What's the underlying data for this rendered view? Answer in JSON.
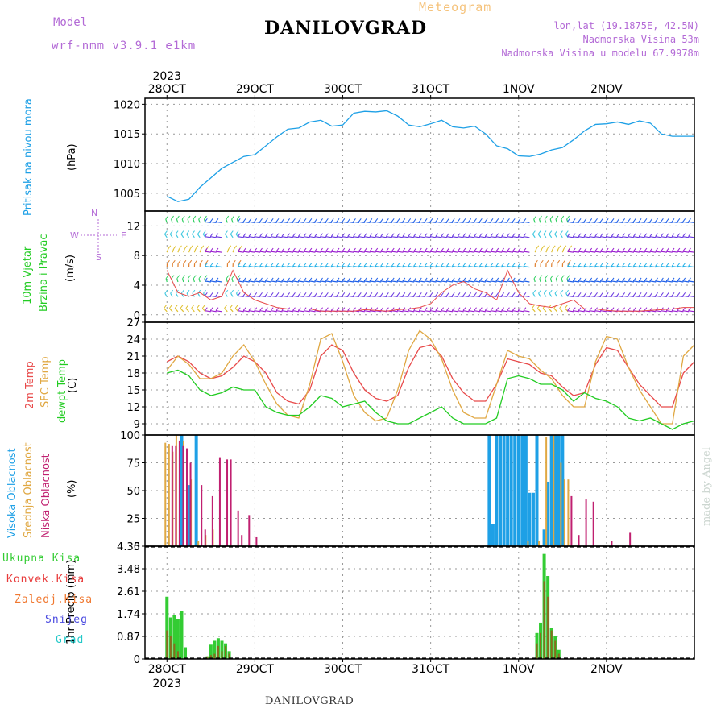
{
  "header": {
    "model_label": "Model",
    "model_name": "wrf-nmm_v3.9.1 e1km",
    "location": "DANILOVGRAD",
    "meteogram": "Meteogram",
    "lonlat": "lon,lat (19.1875E, 42.5N)",
    "elevation": "Nadmorska Visina 53m",
    "model_elevation": "Nadmorska Visina u modelu 67.9978m",
    "footer": "DANILOVGRAD",
    "made_by": "made by Angel"
  },
  "time_axis": {
    "year": "2023",
    "days": [
      "28OCT",
      "29OCT",
      "30OCT",
      "31OCT",
      "1NOV",
      "2NOV"
    ]
  },
  "panels": {
    "pressure": {
      "label": "Pritisak na nivou mora",
      "unit": "(hPa)"
    },
    "wind": {
      "label1": "10m Vjetar",
      "label2": "Brzina i Pravac",
      "unit": "(m/s)",
      "compass_n": "N",
      "compass_s": "S",
      "compass_e": "E",
      "compass_w": "W"
    },
    "temp": {
      "label1": "2m Temp",
      "label2": "SFC Temp",
      "label3": "dewpt Temp",
      "unit": "(C)"
    },
    "cloud": {
      "label1": "Visoka Oblacnost",
      "label2": "Srednja Oblacnost",
      "label3": "Niska Oblacnost",
      "unit": "(%)"
    },
    "precip": {
      "label": "1hr Precip (mm)",
      "legend": [
        "Ukupna Kisa",
        "Konvek.Kisa",
        "Zaledj.Kisa",
        "Snijeg",
        "Grad"
      ]
    }
  },
  "colors": {
    "pressure": "#1ea0e6",
    "t2m": "#e84a4a",
    "tsfc": "#e0a843",
    "dewpt": "#22cc22",
    "cloud_high": "#1ea0e6",
    "cloud_mid": "#e0a843",
    "cloud_low": "#c02070",
    "rain_total": "#33cc33",
    "rain_conv": "#e83a3a",
    "rain_frz": "#f07830",
    "snow": "#4a4ae0",
    "hail": "#22c8c8",
    "wind_label": "#22cc22",
    "label_purple": "#b36ad6"
  },
  "chart_data": [
    {
      "type": "line",
      "title": "Pritisak na nivou mora",
      "ylabel": "(hPa)",
      "ylim": [
        1002,
        1021
      ],
      "yticks": [
        1005,
        1010,
        1015,
        1020
      ],
      "x_hours": [
        0,
        3,
        6,
        9,
        12,
        15,
        18,
        21,
        24,
        27,
        30,
        33,
        36,
        39,
        42,
        45,
        48,
        51,
        54,
        57,
        60,
        63,
        66,
        69,
        72,
        75,
        78,
        81,
        84,
        87,
        90,
        93,
        96,
        99,
        102,
        105,
        108,
        111,
        114,
        117,
        120,
        123,
        126,
        129,
        132,
        135,
        138,
        141,
        144
      ],
      "series": [
        {
          "values": [
            1004.5,
            1003.6,
            1004.0,
            1006.0,
            1007.6,
            1009.2,
            1010.2,
            1011.2,
            1011.5,
            1013.0,
            1014.5,
            1015.8,
            1016.0,
            1017.0,
            1017.3,
            1016.3,
            1016.5,
            1018.5,
            1018.8,
            1018.7,
            1018.9,
            1018.0,
            1016.5,
            1016.2,
            1016.7,
            1017.3,
            1016.2,
            1016.0,
            1016.3,
            1015.0,
            1013.0,
            1012.5,
            1011.3,
            1011.2,
            1011.6,
            1012.3,
            1012.7,
            1014.0,
            1015.5,
            1016.6,
            1016.7,
            1017.0,
            1016.6,
            1017.2,
            1016.8,
            1015.0,
            1014.6,
            1014.6,
            1014.6
          ]
        }
      ]
    },
    {
      "type": "line",
      "title": "10m Vjetar Brzina i Pravac",
      "ylabel": "(m/s)",
      "ylim": [
        -1,
        14
      ],
      "yticks": [
        0,
        4,
        8,
        12
      ],
      "x_hours": [
        0,
        3,
        6,
        9,
        12,
        15,
        18,
        21,
        24,
        27,
        30,
        33,
        36,
        39,
        42,
        45,
        48,
        51,
        54,
        57,
        60,
        63,
        66,
        69,
        72,
        75,
        78,
        81,
        84,
        87,
        90,
        93,
        96,
        99,
        102,
        105,
        108,
        111,
        114,
        117,
        120,
        123,
        126,
        129,
        132,
        135,
        138,
        141,
        144
      ],
      "series": [
        {
          "values": [
            6,
            3,
            2.5,
            3,
            2,
            2.5,
            6,
            3,
            2,
            1.5,
            1,
            0.8,
            0.8,
            0.8,
            0.5,
            0.5,
            0.5,
            0.5,
            0.7,
            0.6,
            0.5,
            0.7,
            0.8,
            1,
            1.5,
            3,
            4,
            4.5,
            3.5,
            3,
            2,
            6,
            3,
            1.5,
            1.2,
            1,
            1.5,
            2,
            0.8,
            0.8,
            0.6,
            0.5,
            0.5,
            0.5,
            0.6,
            0.7,
            0.8,
            1,
            1
          ]
        }
      ]
    },
    {
      "type": "line",
      "title": "2m Temp / SFC Temp / dewpt Temp",
      "ylabel": "(C)",
      "ylim": [
        7,
        27
      ],
      "yticks": [
        9,
        12,
        15,
        18,
        21,
        24,
        27
      ],
      "x_hours": [
        0,
        3,
        6,
        9,
        12,
        15,
        18,
        21,
        24,
        27,
        30,
        33,
        36,
        39,
        42,
        45,
        48,
        51,
        54,
        57,
        60,
        63,
        66,
        69,
        72,
        75,
        78,
        81,
        84,
        87,
        90,
        93,
        96,
        99,
        102,
        105,
        108,
        111,
        114,
        117,
        120,
        123,
        126,
        129,
        132,
        135,
        138,
        141,
        144
      ],
      "series": [
        {
          "name": "2m Temp",
          "values": [
            20,
            21,
            20,
            18,
            17,
            17.5,
            19,
            21,
            20,
            18,
            14.5,
            13,
            12.5,
            15,
            21,
            23,
            22,
            18,
            15,
            13.5,
            13,
            14,
            19,
            22.5,
            23,
            21,
            17,
            14.5,
            13,
            13,
            16,
            20.5,
            20,
            19.5,
            18,
            17.5,
            15.5,
            14,
            14.5,
            19.5,
            22.5,
            22,
            19,
            16,
            14,
            12,
            12,
            18,
            20
          ]
        },
        {
          "name": "SFC Temp",
          "values": [
            18.5,
            21,
            19.5,
            17,
            17,
            18,
            21,
            23,
            20,
            16,
            12.5,
            10.5,
            10,
            16,
            24,
            25,
            20,
            14,
            11,
            9.5,
            10,
            15,
            22,
            25.5,
            24,
            20.5,
            15,
            11,
            10,
            10,
            16,
            22,
            21,
            20.5,
            18.5,
            17,
            14,
            12,
            12,
            20,
            24.5,
            24,
            19,
            15,
            12,
            9,
            9,
            21,
            23
          ]
        },
        {
          "name": "dewpt Temp",
          "values": [
            18,
            18.5,
            17.5,
            15,
            14,
            14.5,
            15.5,
            15,
            15,
            12,
            11,
            10.5,
            10.5,
            12,
            14,
            13.5,
            12,
            12.5,
            13,
            11,
            9.5,
            9,
            9,
            10,
            11,
            12,
            10,
            9,
            9,
            9,
            10,
            17,
            17.5,
            17,
            16,
            16,
            15,
            13,
            14.5,
            13.5,
            13,
            12,
            10,
            9.5,
            10,
            9,
            8,
            9,
            9.5
          ]
        }
      ]
    },
    {
      "type": "bar",
      "title": "Oblacnost",
      "ylabel": "(%)",
      "ylim": [
        0,
        100
      ],
      "yticks": [
        0,
        25,
        50,
        75,
        100
      ],
      "series": [
        {
          "name": "Visoka Oblacnost",
          "bars": [
            [
              0,
              0
            ],
            [
              4,
              100
            ],
            [
              6,
              55
            ],
            [
              8,
              100
            ],
            [
              88,
              100
            ],
            [
              89,
              20
            ],
            [
              90,
              100
            ],
            [
              91,
              100
            ],
            [
              92,
              100
            ],
            [
              93,
              100
            ],
            [
              94,
              100
            ],
            [
              95,
              100
            ],
            [
              96,
              100
            ],
            [
              97,
              100
            ],
            [
              98,
              100
            ],
            [
              99,
              48
            ],
            [
              100,
              48
            ],
            [
              101,
              100
            ],
            [
              103,
              15
            ],
            [
              104,
              58
            ],
            [
              105,
              100
            ],
            [
              106,
              100
            ],
            [
              107,
              100
            ],
            [
              108,
              100
            ]
          ]
        },
        {
          "name": "Srednja Oblacnost",
          "bars": [
            [
              0,
              93
            ],
            [
              1,
              92
            ],
            [
              2,
              85
            ],
            [
              3,
              100
            ],
            [
              5,
              95
            ],
            [
              7,
              60
            ],
            [
              9,
              5
            ],
            [
              11,
              10
            ],
            [
              13,
              15
            ],
            [
              99,
              5
            ],
            [
              102,
              5
            ],
            [
              104,
              98
            ],
            [
              106,
              100
            ],
            [
              108,
              75
            ],
            [
              109,
              60
            ],
            [
              110,
              60
            ]
          ]
        },
        {
          "name": "Niska Oblacnost",
          "bars": [
            [
              1,
              90
            ],
            [
              2,
              90
            ],
            [
              3,
              95
            ],
            [
              4,
              90
            ],
            [
              5,
              88
            ],
            [
              6,
              75
            ],
            [
              9,
              55
            ],
            [
              10,
              15
            ],
            [
              12,
              45
            ],
            [
              14,
              80
            ],
            [
              16,
              78
            ],
            [
              17,
              78
            ],
            [
              19,
              32
            ],
            [
              20,
              10
            ],
            [
              22,
              28
            ],
            [
              24,
              8
            ],
            [
              110,
              45
            ],
            [
              112,
              10
            ],
            [
              114,
              42
            ],
            [
              116,
              40
            ],
            [
              121,
              5
            ],
            [
              126,
              12
            ]
          ]
        }
      ]
    },
    {
      "type": "bar",
      "title": "1hr Precip",
      "ylabel": "1hr Precip (mm)",
      "ylim": [
        0,
        4.35
      ],
      "yticks": [
        0,
        0.87,
        1.74,
        2.61,
        3.48,
        4.35
      ],
      "series": [
        {
          "name": "Ukupna Kisa",
          "bars": [
            [
              0,
              2.4
            ],
            [
              1,
              1.6
            ],
            [
              2,
              1.7
            ],
            [
              3,
              1.55
            ],
            [
              4,
              1.85
            ],
            [
              5,
              0.45
            ],
            [
              11,
              0.1
            ],
            [
              12,
              0.55
            ],
            [
              13,
              0.7
            ],
            [
              14,
              0.8
            ],
            [
              15,
              0.7
            ],
            [
              16,
              0.6
            ],
            [
              17,
              0.3
            ],
            [
              101,
              1.0
            ],
            [
              102,
              1.4
            ],
            [
              103,
              4.05
            ],
            [
              104,
              3.2
            ],
            [
              105,
              1.2
            ],
            [
              106,
              0.9
            ],
            [
              107,
              0.35
            ]
          ]
        },
        {
          "name": "Konvek.Kisa",
          "bars": [
            [
              0,
              1.1
            ],
            [
              1,
              0.9
            ],
            [
              2,
              0.6
            ],
            [
              3,
              0.3
            ],
            [
              11,
              0.1
            ],
            [
              12,
              0.15
            ],
            [
              13,
              0.2
            ],
            [
              14,
              0.5
            ],
            [
              15,
              0.3
            ],
            [
              16,
              0.5
            ],
            [
              17,
              0.2
            ],
            [
              101,
              0.6
            ],
            [
              102,
              1.0
            ],
            [
              103,
              3.0
            ],
            [
              104,
              2.4
            ],
            [
              105,
              1.1
            ],
            [
              106,
              0.7
            ],
            [
              107,
              0.2
            ]
          ]
        }
      ]
    }
  ]
}
